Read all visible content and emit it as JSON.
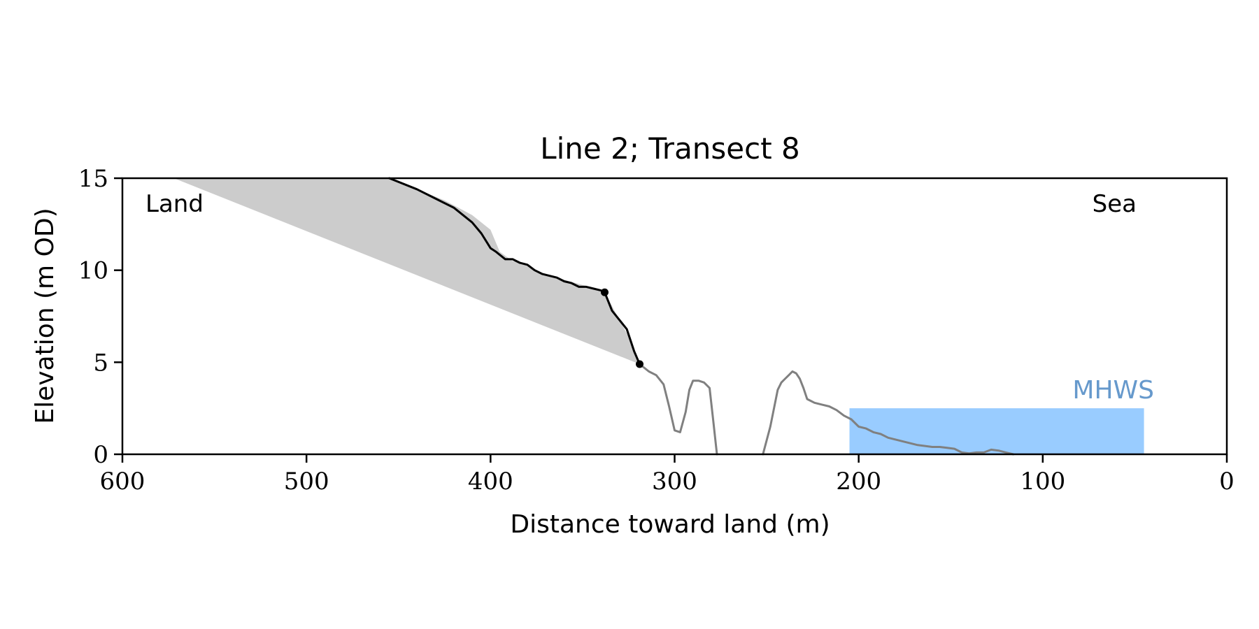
{
  "chart_data": {
    "type": "line",
    "title": "Line 2; Transect 8",
    "xlabel": "Distance toward land (m)",
    "ylabel": "Elevation (m OD)",
    "xlim": [
      600,
      0
    ],
    "ylim": [
      0,
      15
    ],
    "x_ticks": [
      600,
      500,
      400,
      300,
      200,
      100,
      0
    ],
    "y_ticks": [
      0,
      5,
      10,
      15
    ],
    "grid": false,
    "legend": "none",
    "annotations": {
      "land": "Land",
      "sea": "Sea"
    },
    "mhws": {
      "label": "MHWS",
      "elevation": 2.5,
      "x_start": 45,
      "x_end": 205,
      "color": "#99ccff",
      "label_color": "#6699cc"
    },
    "cliff_area": {
      "color": "#cccccc",
      "top_boundary": [
        [
          572,
          15
        ],
        [
          455,
          15
        ],
        [
          440,
          14.4
        ],
        [
          425,
          13.8
        ],
        [
          410,
          13.0
        ],
        [
          400,
          12.2
        ],
        [
          395,
          11.0
        ],
        [
          388,
          10.5
        ],
        [
          380,
          10.3
        ],
        [
          372,
          9.8
        ],
        [
          365,
          9.6
        ],
        [
          357,
          9.4
        ],
        [
          350,
          9.2
        ],
        [
          343,
          9.0
        ],
        [
          338,
          8.8
        ],
        [
          330,
          7.3
        ],
        [
          325,
          6.4
        ],
        [
          322,
          5.5
        ],
        [
          319,
          4.9
        ]
      ],
      "bottom_boundary": [
        [
          572,
          15
        ],
        [
          319,
          4.9
        ]
      ]
    },
    "series": [
      {
        "color": "#000000",
        "x": [
          455,
          440,
          430,
          420,
          410,
          405,
          400,
          397,
          392,
          388,
          384,
          380,
          376,
          372,
          368,
          364,
          360,
          356,
          352,
          348,
          344,
          340,
          338,
          334,
          330,
          326,
          322,
          319
        ],
        "y": [
          15.0,
          14.4,
          13.9,
          13.4,
          12.6,
          12.0,
          11.2,
          11.0,
          10.6,
          10.6,
          10.4,
          10.3,
          10.0,
          9.8,
          9.7,
          9.6,
          9.4,
          9.3,
          9.1,
          9.1,
          9.0,
          8.9,
          8.8,
          7.8,
          7.3,
          6.8,
          5.6,
          4.9
        ]
      },
      {
        "color": "#808080",
        "x": [
          319,
          314,
          310,
          306,
          303,
          300,
          297,
          294,
          292,
          290,
          287,
          284,
          281,
          279,
          277
        ],
        "y": [
          4.9,
          4.5,
          4.3,
          3.8,
          2.6,
          1.3,
          1.2,
          2.3,
          3.5,
          4.0,
          4.0,
          3.9,
          3.6,
          1.8,
          0.0
        ]
      },
      {
        "color": "#808080",
        "x": [
          252,
          248,
          244,
          242,
          240,
          238,
          236,
          234,
          232,
          230,
          228,
          226,
          224,
          220,
          216,
          212,
          208,
          204,
          200,
          196,
          192,
          188,
          184,
          180,
          176,
          172,
          168,
          164,
          160,
          156,
          152,
          148,
          144,
          140,
          136,
          132,
          128,
          124,
          120,
          116
        ],
        "y": [
          0.0,
          1.5,
          3.5,
          3.9,
          4.1,
          4.3,
          4.5,
          4.4,
          4.1,
          3.6,
          3.0,
          2.9,
          2.8,
          2.7,
          2.6,
          2.4,
          2.1,
          1.9,
          1.5,
          1.4,
          1.2,
          1.1,
          0.9,
          0.8,
          0.7,
          0.6,
          0.5,
          0.45,
          0.4,
          0.4,
          0.35,
          0.3,
          0.1,
          0.05,
          0.1,
          0.1,
          0.25,
          0.2,
          0.1,
          0.0
        ]
      }
    ],
    "endpoint_markers": [
      [
        338,
        8.8
      ],
      [
        319,
        4.9
      ]
    ]
  }
}
